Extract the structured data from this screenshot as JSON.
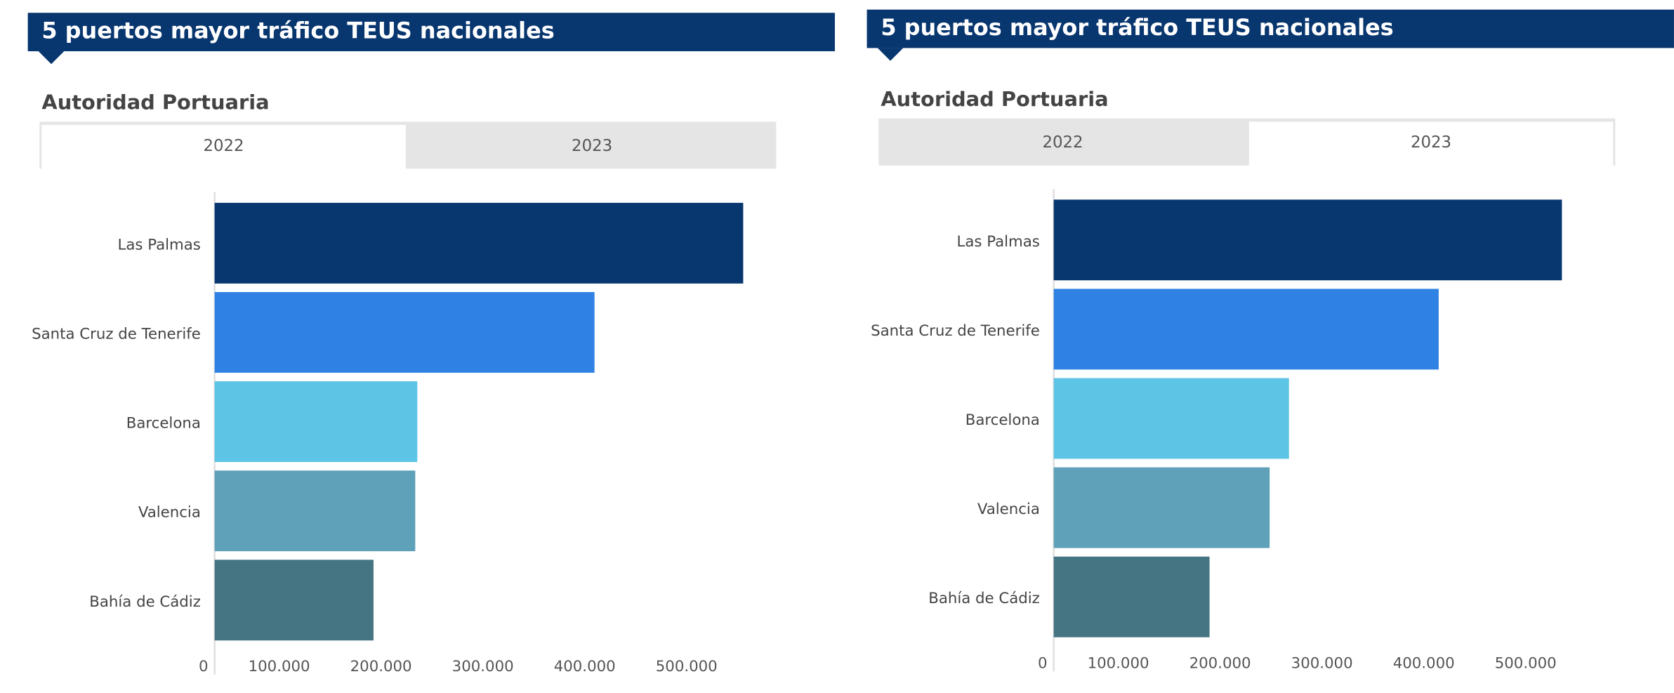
{
  "chart_data": [
    {
      "type": "bar",
      "title": "5 puertos mayor tráfico TEUS nacionales",
      "subtitle": "Autoridad Portuaria",
      "tabs": [
        "2022",
        "2023"
      ],
      "selected_tab": "2022",
      "categories": [
        "Las Palmas",
        "Santa Cruz de Tenerife",
        "Barcelona",
        "Valencia",
        "Bahía de Cádiz"
      ],
      "values": [
        519000,
        373000,
        199000,
        197000,
        156000
      ],
      "colors": [
        "#08366f",
        "#2f82e3",
        "#5dc4e5",
        "#5fa1b8",
        "#457482"
      ],
      "xlim": [
        0,
        550000
      ],
      "xticks": [
        0,
        {
          "value": 100000,
          "label": "100.000"
        },
        {
          "value": 200000,
          "label": "200.000"
        },
        {
          "value": 300000,
          "label": "300.000"
        },
        {
          "value": 400000,
          "label": "400.000"
        },
        {
          "value": 500000,
          "label": "500.000"
        }
      ]
    },
    {
      "type": "bar",
      "title": "5 puertos mayor tráfico TEUS nacionales",
      "subtitle": "Autoridad Portuaria",
      "tabs": [
        "2022",
        "2023"
      ],
      "selected_tab": "2023",
      "categories": [
        "Las Palmas",
        "Santa Cruz de Tenerife",
        "Barcelona",
        "Valencia",
        "Bahía de Cádiz"
      ],
      "values": [
        499000,
        378000,
        231000,
        212000,
        153000
      ],
      "colors": [
        "#08366f",
        "#2f82e3",
        "#5dc4e5",
        "#5fa1b8",
        "#457482"
      ],
      "xlim": [
        0,
        550000
      ],
      "xticks": [
        0,
        {
          "value": 100000,
          "label": "100.000"
        },
        {
          "value": 200000,
          "label": "200.000"
        },
        {
          "value": 300000,
          "label": "300.000"
        },
        {
          "value": 400000,
          "label": "400.000"
        },
        {
          "value": 500000,
          "label": "500.000"
        }
      ]
    }
  ]
}
